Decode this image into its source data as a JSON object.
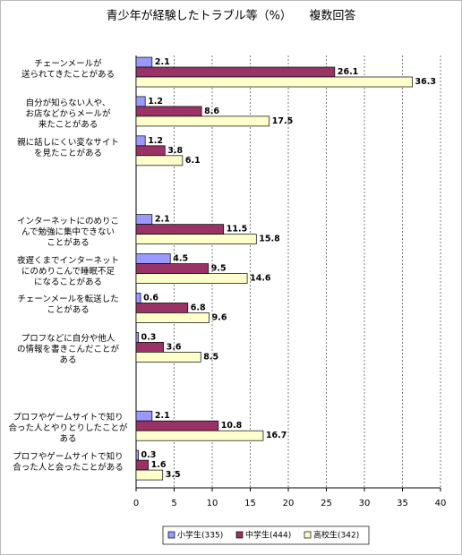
{
  "chart_data": {
    "type": "hbar",
    "title": "青少年が経験したトラブル等（%）　　複数回答",
    "categories": [
      "チェーンメールが\n送られてきたことがある",
      "自分が知らない人や、\nお店などからメールが\n来たことがある",
      "親に話しにくい変なサイト\nを見たことがある",
      null,
      "インターネットにのめりこ\nんで勉強に集中できない\nことがある",
      "夜遅くまでインターネット\nにのめりこんで睡眠不足\nになることがある",
      "チェーンメールを転送した\nことがある",
      "プロフなどに自分や他人\nの情報を書きこんだことが\nある",
      null,
      "プロフやゲームサイトで知り\n合った人とやりとりしたことが\nある",
      "プロフやゲームサイトで知り\n合った人と会ったことがある"
    ],
    "series": [
      {
        "name": "小学生(335)",
        "color": "#9999ff",
        "values": [
          2.1,
          1.2,
          1.2,
          null,
          2.1,
          4.5,
          0.6,
          0.3,
          null,
          2.1,
          0.3
        ]
      },
      {
        "name": "中学生(444)",
        "color": "#993366",
        "values": [
          26.1,
          8.6,
          3.8,
          null,
          11.5,
          9.5,
          6.8,
          3.6,
          null,
          10.8,
          1.6
        ]
      },
      {
        "name": "高校生(342)",
        "color": "#ffffcc",
        "values": [
          36.3,
          17.5,
          6.1,
          null,
          15.8,
          14.6,
          9.6,
          8.5,
          null,
          16.7,
          3.5
        ]
      }
    ],
    "xlim": [
      0,
      40
    ],
    "xticks": [
      0,
      5,
      10,
      15,
      20,
      25,
      30,
      35,
      40
    ],
    "grid": true,
    "legend": "bottom"
  }
}
